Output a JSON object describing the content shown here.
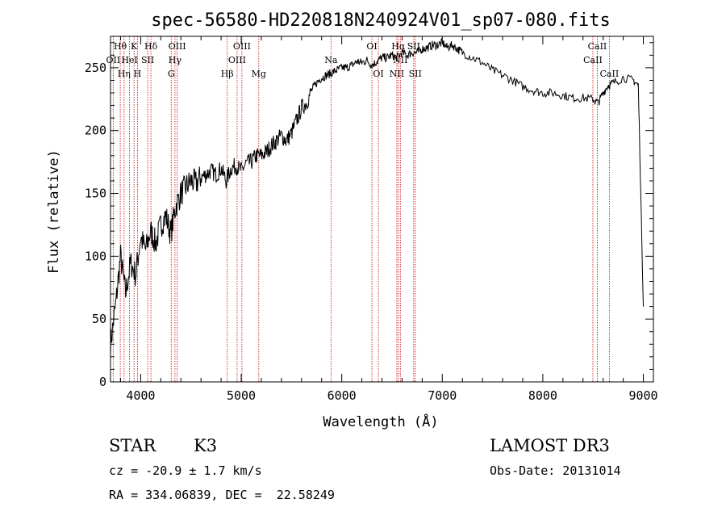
{
  "chart_data": {
    "type": "line",
    "title": "spec-56580-HD220818N240924V01_sp07-080.fits",
    "xlabel": "Wavelength (Å)",
    "ylabel": "Flux (relative)",
    "xlim": [
      3700,
      9100
    ],
    "ylim": [
      0,
      275
    ],
    "xticks": [
      4000,
      5000,
      6000,
      7000,
      8000,
      9000
    ],
    "yticks": [
      0,
      50,
      100,
      150,
      200,
      250
    ],
    "grid": false,
    "series": [
      {
        "name": "flux",
        "x": [
          3700,
          3750,
          3800,
          3850,
          3900,
          3950,
          4000,
          4050,
          4100,
          4150,
          4200,
          4250,
          4300,
          4350,
          4400,
          4450,
          4500,
          4550,
          4600,
          4650,
          4700,
          4750,
          4800,
          4850,
          4900,
          4950,
          5000,
          5050,
          5100,
          5150,
          5200,
          5250,
          5300,
          5350,
          5400,
          5450,
          5500,
          5550,
          5600,
          5650,
          5700,
          5750,
          5800,
          5850,
          5900,
          5950,
          6000,
          6050,
          6100,
          6150,
          6200,
          6250,
          6300,
          6350,
          6400,
          6450,
          6500,
          6550,
          6600,
          6650,
          6700,
          6750,
          6800,
          6850,
          6900,
          6950,
          7000,
          7050,
          7100,
          7150,
          7200,
          7300,
          7400,
          7500,
          7600,
          7700,
          7800,
          7900,
          8000,
          8100,
          8200,
          8300,
          8400,
          8500,
          8550,
          8600,
          8650,
          8700,
          8800,
          8900,
          8950,
          9000
        ],
        "y": [
          30,
          60,
          100,
          70,
          95,
          85,
          115,
          105,
          120,
          110,
          125,
          132,
          118,
          140,
          150,
          155,
          160,
          158,
          163,
          165,
          168,
          165,
          170,
          160,
          170,
          172,
          168,
          174,
          175,
          180,
          180,
          183,
          188,
          192,
          196,
          192,
          198,
          208,
          218,
          222,
          232,
          238,
          242,
          244,
          246,
          248,
          250,
          250,
          252,
          255,
          254,
          256,
          252,
          255,
          258,
          258,
          260,
          258,
          262,
          260,
          262,
          262,
          265,
          266,
          268,
          268,
          270,
          266,
          268,
          265,
          262,
          258,
          254,
          248,
          244,
          240,
          235,
          232,
          230,
          230,
          228,
          226,
          226,
          225,
          222,
          230,
          236,
          238,
          242,
          240,
          236,
          60
        ]
      }
    ],
    "line_markers": [
      {
        "label": "Hθ",
        "wavelength": 3797,
        "row": 0
      },
      {
        "label": "OII",
        "wavelength": 3727,
        "row": 1
      },
      {
        "label": "Hη",
        "wavelength": 3835,
        "row": 2
      },
      {
        "label": "K",
        "wavelength": 3934,
        "row": 0
      },
      {
        "label": "HeI",
        "wavelength": 3889,
        "row": 1
      },
      {
        "label": "H",
        "wavelength": 3968,
        "row": 2
      },
      {
        "label": "SII",
        "wavelength": 4070,
        "row": 1
      },
      {
        "label": "Hδ",
        "wavelength": 4102,
        "row": 0
      },
      {
        "label": "OIII",
        "wavelength": 4363,
        "row": 0
      },
      {
        "label": "Hγ",
        "wavelength": 4341,
        "row": 1
      },
      {
        "label": "G",
        "wavelength": 4304,
        "row": 2
      },
      {
        "label": "Hβ",
        "wavelength": 4861,
        "row": 2
      },
      {
        "label": "OIII",
        "wavelength": 5007,
        "row": 0
      },
      {
        "label": "OIII",
        "wavelength": 4959,
        "row": 1
      },
      {
        "label": "Mg",
        "wavelength": 5175,
        "row": 2
      },
      {
        "label": "Na",
        "wavelength": 5893,
        "row": 1
      },
      {
        "label": "OI",
        "wavelength": 6300,
        "row": 0
      },
      {
        "label": "OI",
        "wavelength": 6364,
        "row": 2
      },
      {
        "label": "Hα",
        "wavelength": 6563,
        "row": 0
      },
      {
        "label": "SII",
        "wavelength": 6716,
        "row": 0
      },
      {
        "label": "NII",
        "wavelength": 6583,
        "row": 1
      },
      {
        "label": "NII",
        "wavelength": 6548,
        "row": 2
      },
      {
        "label": "SII",
        "wavelength": 6731,
        "row": 2
      },
      {
        "label": "CaII",
        "wavelength": 8542,
        "row": 0
      },
      {
        "label": "CaII",
        "wavelength": 8498,
        "row": 1
      },
      {
        "label": "CaII",
        "wavelength": 8662,
        "row": 2
      }
    ]
  },
  "info": {
    "class_label": "STAR",
    "subclass": "K3",
    "survey": "LAMOST DR3",
    "redshift": "cz = -20.9 ± 1.7 km/s",
    "obs_date": "Obs-Date: 20131014",
    "coords": "RA = 334.06839, DEC =  22.58249"
  },
  "colors": {
    "marker": "#cc0000",
    "spectrum": "#000000",
    "axis": "#000000"
  }
}
